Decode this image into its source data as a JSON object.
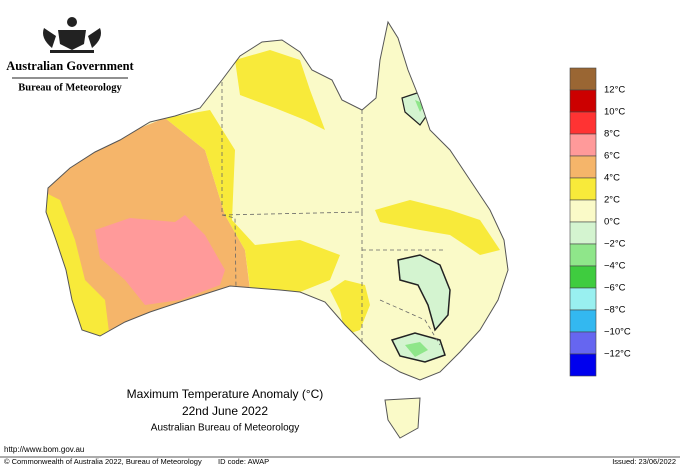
{
  "header": {
    "government": "Australian Government",
    "agency": "Bureau of Meteorology"
  },
  "map": {
    "title": "Maximum Temperature Anomaly (°C)",
    "date": "22nd June 2022",
    "source": "Australian Bureau of Meteorology"
  },
  "legend": {
    "labels": [
      "12°C",
      "10°C",
      "8°C",
      "6°C",
      "4°C",
      "2°C",
      "0°C",
      "−2°C",
      "−4°C",
      "−6°C",
      "−8°C",
      "−10°C",
      "−12°C"
    ],
    "colors": [
      "#9a6633",
      "#cc0000",
      "#ff3333",
      "#ff9a9a",
      "#f5b56a",
      "#f8ea3a",
      "#fafac8",
      "#d4f4d0",
      "#8fe68a",
      "#3fcc3f",
      "#99f0f0",
      "#33b8f0",
      "#6666f0",
      "#0000ee"
    ]
  },
  "footer": {
    "url": "http://www.bom.gov.au",
    "copyright": "© Commonwealth of Australia 2022, Bureau of Meteorology",
    "id_code": "ID code: AWAP",
    "issued": "Issued: 23/06/2022"
  }
}
